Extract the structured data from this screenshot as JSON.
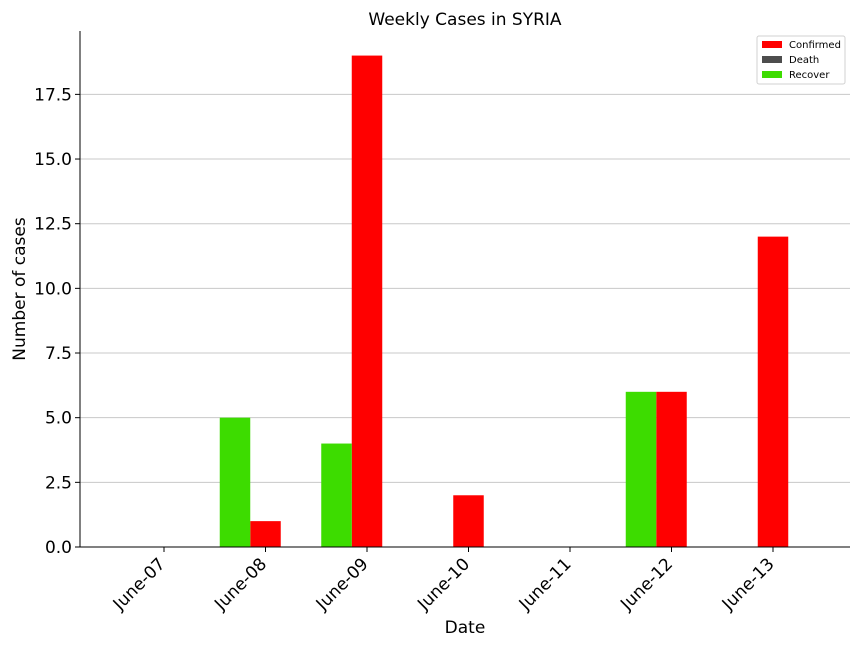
{
  "chart_data": {
    "type": "bar",
    "title": "Weekly Cases in SYRIA",
    "xlabel": "Date",
    "ylabel": "Number of cases",
    "categories": [
      "June-07",
      "June-08",
      "June-09",
      "June-10",
      "June-11",
      "June-12",
      "June-13"
    ],
    "series": [
      {
        "name": "Confirmed",
        "color": "#ff0000",
        "values": [
          0,
          1,
          19,
          2,
          0,
          6,
          12
        ]
      },
      {
        "name": "Death",
        "color": "#4d4d4d",
        "values": [
          0,
          0,
          0,
          0,
          0,
          0,
          0
        ]
      },
      {
        "name": "Recover",
        "color": "#3ddc00",
        "values": [
          0,
          5,
          4,
          0,
          0,
          6,
          0
        ]
      }
    ],
    "ylim": [
      0,
      19.95
    ],
    "yticks": [
      0,
      2.5,
      5,
      7.5,
      10,
      12.5,
      15,
      17.5
    ],
    "ytick_labels": [
      "0.0",
      "2.5",
      "5.0",
      "7.5",
      "10.0",
      "12.5",
      "15.0",
      "17.5"
    ],
    "grid": "horizontal",
    "legend_position": "top-right"
  }
}
